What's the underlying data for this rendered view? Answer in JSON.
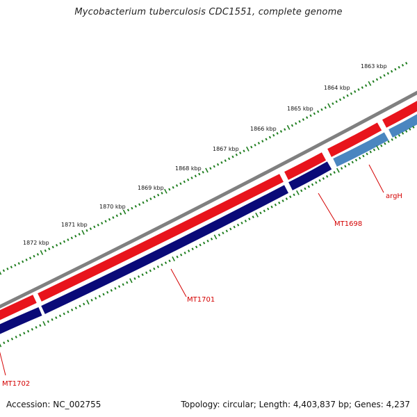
{
  "title": "Mycobacterium tuberculosis CDC1551, complete genome",
  "footer": {
    "accession": "Accession: NC_002755",
    "summary": "Topology: circular; Length: 4,403,837 bp; Genes: 4,237"
  },
  "scale_labels": [
    "1863 kbp",
    "1864 kbp",
    "1865 kbp",
    "1866 kbp",
    "1867 kbp",
    "1868 kbp",
    "1869 kbp",
    "1870 kbp",
    "1871 kbp",
    "1872 kbp"
  ],
  "gene_labels": {
    "argH": "argH",
    "mt1698": "MT1698",
    "mt1701": "MT1701",
    "mt1702": "MT1702"
  },
  "colors": {
    "backbone": "#808080",
    "forward_gene": "#e8141c",
    "reverse_gene": "#0a0a78",
    "light_gene": "#4a86c0",
    "tick": "#1e7d1e",
    "label": "#d40000"
  }
}
